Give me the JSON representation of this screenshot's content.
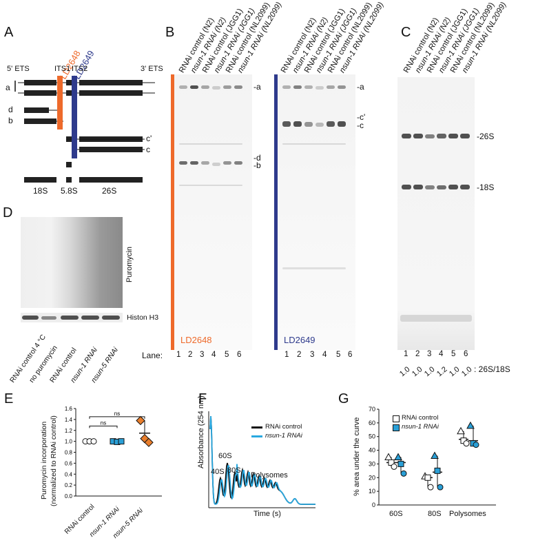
{
  "panels": {
    "A": "A",
    "B": "B",
    "C": "C",
    "D": "D",
    "E": "E",
    "F": "F",
    "G": "G"
  },
  "panelA": {
    "probe1": "LD2648",
    "probe2": "LD2649",
    "ets5": "5' ETS",
    "its1": "ITS1",
    "its2": "ITS2",
    "ets3": "3' ETS",
    "rows": [
      "a",
      "d",
      "b",
      "c'",
      "c"
    ],
    "bottom": [
      "18S",
      "5.8S",
      "26S"
    ],
    "colors": {
      "probe1": "#ee6a2b",
      "probe2": "#2e3a8c"
    }
  },
  "panelB": {
    "lanes_left": [
      "RNAi control (N2)",
      "nsun-1 RNAi (N2)",
      "RNAi control (JGG1)",
      "nsun-1 RNAi (JGG1)",
      "RNAi control (NL2099)",
      "nsun-1 RNAi (NL2099)"
    ],
    "lanes_right": [
      "RNAi control (N2)",
      "nsun-1 RNAi (N2)",
      "RNAi control (JGG1)",
      "nsun-1 RNAi (JGG1)",
      "RNAi control (NL2099)",
      "nsun-1 RNAi (NL2099)"
    ],
    "markers_left": [
      "-a",
      "-d",
      "-b"
    ],
    "markers_right": [
      "-a",
      "-c'",
      "-c"
    ],
    "probe_left": "LD2648",
    "probe_right": "LD2649",
    "lane_word": "Lane:",
    "lane_numbers": [
      "1",
      "2",
      "3",
      "4",
      "5",
      "6"
    ]
  },
  "panelC": {
    "lanes": [
      "RNAi control (N2)",
      "nsun-1 RNAi (N2)",
      "RNAi control (JGG1)",
      "nsun-1 RNAi (JGG1)",
      "RNAi control (NL2099)",
      "nsun-1 RNAi (NL2099)"
    ],
    "markers": [
      "-26S",
      "-18S"
    ],
    "lane_numbers": [
      "1",
      "2",
      "3",
      "4",
      "5",
      "6"
    ],
    "ratios": [
      "1.0",
      "1.0",
      "1.0",
      "1.2",
      "1.0",
      "1.0"
    ],
    "ratio_label": ": 26S/18S"
  },
  "panelD": {
    "puromycin": "Puromycin",
    "histone": "Histon H3",
    "lanes": [
      "RNAi control 4 °C",
      "no puromycin",
      "RNAi control",
      "nsun-1 RNAi",
      "nsun-5 RNAi"
    ]
  },
  "panelE": {
    "ylabel1": "Puromycin incorporation",
    "ylabel2": "(normalized to RNAi control)",
    "yticks": [
      "0.0",
      "0.2",
      "0.4",
      "0.6",
      "0.8",
      "1.0",
      "1.2",
      "1.4",
      "1.6"
    ],
    "xlabels": [
      "RNAi control",
      "nsun-1 RNAi",
      "nsun-5 RNAi"
    ],
    "ns1": "ns",
    "ns2": "ns"
  },
  "panelF": {
    "ylabel": "Absorbance (254 nm)",
    "xlabel": "Time (s)",
    "peaks": [
      "40S",
      "60S",
      "80S",
      "Polysomes"
    ],
    "legend": [
      "RNAi control",
      "nsun-1 RNAi"
    ]
  },
  "panelG": {
    "ylabel": "% area under the curve",
    "yticks": [
      "0",
      "10",
      "20",
      "30",
      "40",
      "50",
      "60",
      "70"
    ],
    "xlabels": [
      "60S",
      "80S",
      "Polysomes"
    ],
    "legend": [
      "RNAi control",
      "nsun-1 RNAi"
    ]
  },
  "chart_data": [
    {
      "type": "scatter",
      "title": "",
      "ylabel": "Puromycin incorporation (normalized to RNAi control)",
      "categories": [
        "RNAi control",
        "nsun-1 RNAi",
        "nsun-5 RNAi"
      ],
      "ylim": [
        0,
        1.6
      ],
      "series": [
        {
          "name": "RNAi control",
          "values": [
            1.0,
            1.0,
            1.0
          ],
          "mean": 1.0
        },
        {
          "name": "nsun-1 RNAi",
          "values": [
            1.0,
            0.99,
            1.0
          ],
          "mean": 1.0
        },
        {
          "name": "nsun-5 RNAi",
          "values": [
            1.38,
            1.05,
            0.98
          ],
          "mean": 1.15
        }
      ]
    },
    {
      "type": "scatter",
      "title": "",
      "ylabel": "% area under the curve",
      "categories": [
        "60S",
        "80S",
        "Polysomes"
      ],
      "ylim": [
        0,
        70
      ],
      "series": [
        {
          "name": "RNAi control",
          "values": [
            [
              35,
              31,
              28
            ],
            [
              21,
              20,
              13
            ],
            [
              54,
              47,
              45
            ]
          ],
          "mean": [
            31,
            20,
            48
          ]
        },
        {
          "name": "nsun-1 RNAi",
          "values": [
            [
              35,
              30,
              23
            ],
            [
              36,
              25,
              13
            ],
            [
              58,
              45,
              44
            ]
          ],
          "mean": [
            31,
            24,
            47
          ]
        }
      ],
      "colors": {
        "RNAi control": "#ffffff",
        "nsun-1 RNAi": "#2a9fd6"
      }
    },
    {
      "type": "line",
      "title": "",
      "xlabel": "Time (s)",
      "ylabel": "Absorbance (254 nm)",
      "series": [
        {
          "name": "RNAi control",
          "color": "#111111"
        },
        {
          "name": "nsun-1 RNAi",
          "color": "#29a8e0"
        }
      ]
    }
  ]
}
